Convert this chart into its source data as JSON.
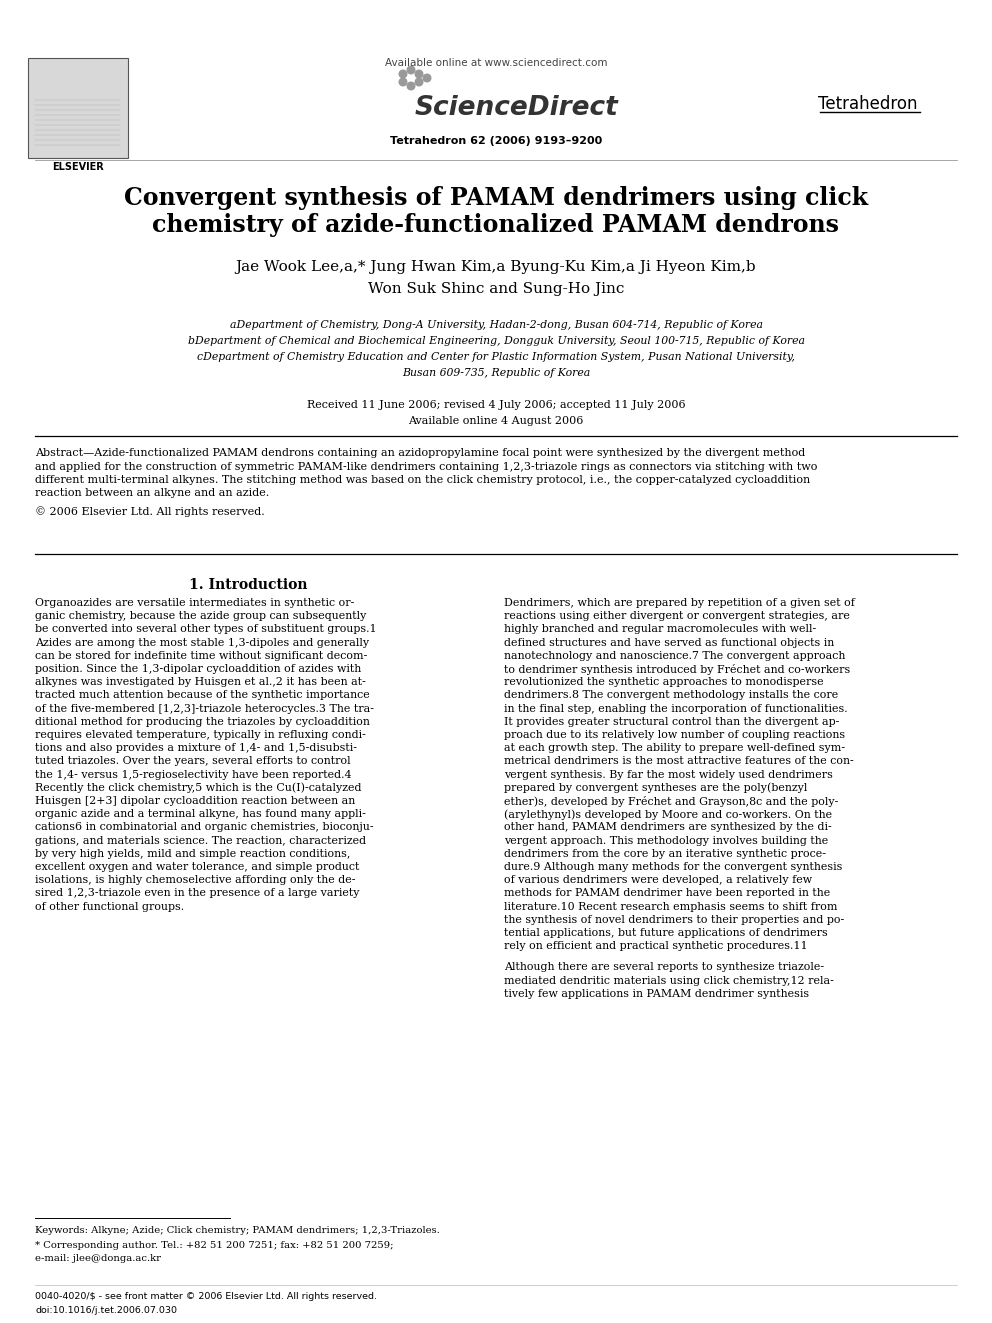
{
  "page_bg": "#ffffff",
  "header_url": "Available online at www.sciencedirect.com",
  "journal_name": "Tetrahedron",
  "journal_issue": "Tetrahedron 62 (2006) 9193–9200",
  "title_line1": "Convergent synthesis of PAMAM dendrimers using click",
  "title_line2": "chemistry of azide-functionalized PAMAM dendrons",
  "author_line1": "Jae Wook Lee,a,* Jung Hwan Kim,a Byung-Ku Kim,a Ji Hyeon Kim,b",
  "author_line2": "Won Suk Shinc and Sung-Ho Jinc",
  "affil_a": "aDepartment of Chemistry, Dong-A University, Hadan-2-dong, Busan 604-714, Republic of Korea",
  "affil_b": "bDepartment of Chemical and Biochemical Engineering, Dongguk University, Seoul 100-715, Republic of Korea",
  "affil_c1": "cDepartment of Chemistry Education and Center for Plastic Information System, Pusan National University,",
  "affil_c2": "Busan 609-735, Republic of Korea",
  "received": "Received 11 June 2006; revised 4 July 2006; accepted 11 July 2006",
  "online": "Available online 4 August 2006",
  "abstract_line1": "Abstract—Azide-functionalized PAMAM dendrons containing an azidopropylamine focal point were synthesized by the divergent method",
  "abstract_line2": "and applied for the construction of symmetric PAMAM-like dendrimers containing 1,2,3-triazole rings as connectors via stitching with two",
  "abstract_line3": "different multi-terminal alkynes. The stitching method was based on the click chemistry protocol, i.e., the copper-catalyzed cycloaddition",
  "abstract_line4": "reaction between an alkyne and an azide.",
  "copyright": "© 2006 Elsevier Ltd. All rights reserved.",
  "section_title": "1. Introduction",
  "left_col": [
    "Organoazides are versatile intermediates in synthetic or-",
    "ganic chemistry, because the azide group can subsequently",
    "be converted into several other types of substituent groups.1",
    "Azides are among the most stable 1,3-dipoles and generally",
    "can be stored for indefinite time without significant decom-",
    "position. Since the 1,3-dipolar cycloaddition of azides with",
    "alkynes was investigated by Huisgen et al.,2 it has been at-",
    "tracted much attention because of the synthetic importance",
    "of the five-membered [1,2,3]-triazole heterocycles.3 The tra-",
    "ditional method for producing the triazoles by cycloaddition",
    "requires elevated temperature, typically in refluxing condi-",
    "tions and also provides a mixture of 1,4- and 1,5-disubsti-",
    "tuted triazoles. Over the years, several efforts to control",
    "the 1,4- versus 1,5-regioselectivity have been reported.4",
    "Recently the click chemistry,5 which is the Cu(I)-catalyzed",
    "Huisgen [2+3] dipolar cycloaddition reaction between an",
    "organic azide and a terminal alkyne, has found many appli-",
    "cations6 in combinatorial and organic chemistries, bioconju-",
    "gations, and materials science. The reaction, characterized",
    "by very high yields, mild and simple reaction conditions,",
    "excellent oxygen and water tolerance, and simple product",
    "isolations, is highly chemoselective affording only the de-",
    "sired 1,2,3-triazole even in the presence of a large variety",
    "of other functional groups."
  ],
  "right_col": [
    "Dendrimers, which are prepared by repetition of a given set of",
    "reactions using either divergent or convergent strategies, are",
    "highly branched and regular macromolecules with well-",
    "defined structures and have served as functional objects in",
    "nanotechnology and nanoscience.7 The convergent approach",
    "to dendrimer synthesis introduced by Fréchet and co-workers",
    "revolutionized the synthetic approaches to monodisperse",
    "dendrimers.8 The convergent methodology installs the core",
    "in the final step, enabling the incorporation of functionalities.",
    "It provides greater structural control than the divergent ap-",
    "proach due to its relatively low number of coupling reactions",
    "at each growth step. The ability to prepare well-defined sym-",
    "metrical dendrimers is the most attractive features of the con-",
    "vergent synthesis. By far the most widely used dendrimers",
    "prepared by convergent syntheses are the poly(benzyl",
    "ether)s, developed by Fréchet and Grayson,8c and the poly-",
    "(arylethynyl)s developed by Moore and co-workers. On the",
    "other hand, PAMAM dendrimers are synthesized by the di-",
    "vergent approach. This methodology involves building the",
    "dendrimers from the core by an iterative synthetic proce-",
    "dure.9 Although many methods for the convergent synthesis",
    "of various dendrimers were developed, a relatively few",
    "methods for PAMAM dendrimer have been reported in the",
    "literature.10 Recent research emphasis seems to shift from",
    "the synthesis of novel dendrimers to their properties and po-",
    "tential applications, but future applications of dendrimers",
    "rely on efficient and practical synthetic procedures.11"
  ],
  "right_col2": [
    "Although there are several reports to synthesize triazole-",
    "mediated dendritic materials using click chemistry,12 rela-",
    "tively few applications in PAMAM dendrimer synthesis"
  ],
  "keywords": "Keywords: Alkyne; Azide; Click chemistry; PAMAM dendrimers; 1,2,3-Triazoles.",
  "corresponding": "* Corresponding author. Tel.: +82 51 200 7251; fax: +82 51 200 7259;",
  "email": "e-mail: jlee@donga.ac.kr",
  "footer1": "0040-4020/$ - see front matter © 2006 Elsevier Ltd. All rights reserved.",
  "footer2": "doi:10.1016/j.tet.2006.07.030",
  "sciencedirect_text": "ScienceDirect",
  "elsevier_label": "ELSEVIER"
}
